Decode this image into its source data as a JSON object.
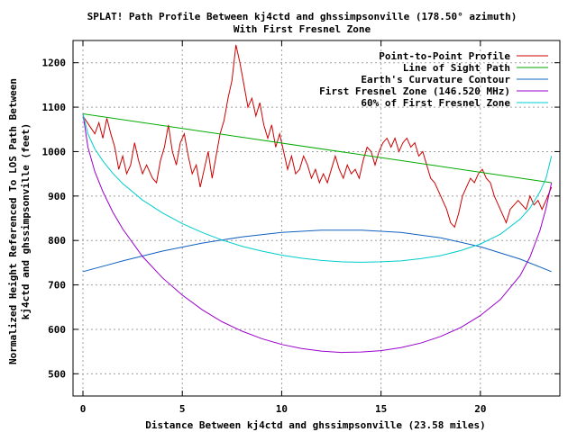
{
  "chart_data": {
    "type": "line",
    "title_line1": "SPLAT! Path Profile Between kj4ctd and ghssimpsonville (178.50° azimuth)",
    "title_line2": "With First Fresnel Zone",
    "xlabel": "Distance Between kj4ctd and ghssimpsonville (23.58 miles)",
    "ylabel_line1": "Normalized Height Referenced To LOS Path Between",
    "ylabel_line2": "kj4ctd and ghssimpsonville (feet)",
    "xlim": [
      -0.5,
      24
    ],
    "ylim": [
      450,
      1250
    ],
    "xticks": [
      0,
      5,
      10,
      15,
      20
    ],
    "yticks": [
      500,
      600,
      700,
      800,
      900,
      1000,
      1100,
      1200
    ],
    "grid": true,
    "legend_position": "top-right",
    "series": [
      {
        "name": "Point-to-Point Profile",
        "color": "#cc0000",
        "points": [
          [
            0,
            1080
          ],
          [
            0.3,
            1060
          ],
          [
            0.6,
            1040
          ],
          [
            0.8,
            1065
          ],
          [
            1.0,
            1030
          ],
          [
            1.2,
            1075
          ],
          [
            1.4,
            1040
          ],
          [
            1.6,
            1010
          ],
          [
            1.8,
            960
          ],
          [
            2.0,
            990
          ],
          [
            2.2,
            950
          ],
          [
            2.4,
            970
          ],
          [
            2.6,
            1020
          ],
          [
            2.8,
            980
          ],
          [
            3.0,
            950
          ],
          [
            3.2,
            970
          ],
          [
            3.5,
            940
          ],
          [
            3.7,
            930
          ],
          [
            3.9,
            980
          ],
          [
            4.1,
            1010
          ],
          [
            4.3,
            1060
          ],
          [
            4.5,
            1000
          ],
          [
            4.7,
            970
          ],
          [
            4.9,
            1020
          ],
          [
            5.1,
            1040
          ],
          [
            5.3,
            990
          ],
          [
            5.5,
            950
          ],
          [
            5.7,
            970
          ],
          [
            5.9,
            920
          ],
          [
            6.1,
            960
          ],
          [
            6.3,
            1000
          ],
          [
            6.5,
            940
          ],
          [
            6.7,
            990
          ],
          [
            6.9,
            1040
          ],
          [
            7.1,
            1070
          ],
          [
            7.3,
            1120
          ],
          [
            7.5,
            1160
          ],
          [
            7.7,
            1240
          ],
          [
            7.9,
            1200
          ],
          [
            8.1,
            1150
          ],
          [
            8.3,
            1100
          ],
          [
            8.5,
            1120
          ],
          [
            8.7,
            1080
          ],
          [
            8.9,
            1110
          ],
          [
            9.1,
            1060
          ],
          [
            9.3,
            1030
          ],
          [
            9.5,
            1060
          ],
          [
            9.7,
            1010
          ],
          [
            9.9,
            1040
          ],
          [
            10.1,
            1000
          ],
          [
            10.3,
            960
          ],
          [
            10.5,
            990
          ],
          [
            10.7,
            950
          ],
          [
            10.9,
            960
          ],
          [
            11.1,
            990
          ],
          [
            11.3,
            970
          ],
          [
            11.5,
            940
          ],
          [
            11.7,
            960
          ],
          [
            11.9,
            930
          ],
          [
            12.1,
            950
          ],
          [
            12.3,
            930
          ],
          [
            12.5,
            960
          ],
          [
            12.7,
            990
          ],
          [
            12.9,
            960
          ],
          [
            13.1,
            940
          ],
          [
            13.3,
            970
          ],
          [
            13.5,
            950
          ],
          [
            13.7,
            960
          ],
          [
            13.9,
            940
          ],
          [
            14.1,
            980
          ],
          [
            14.3,
            1010
          ],
          [
            14.5,
            1000
          ],
          [
            14.7,
            970
          ],
          [
            14.9,
            1000
          ],
          [
            15.1,
            1020
          ],
          [
            15.3,
            1030
          ],
          [
            15.5,
            1010
          ],
          [
            15.7,
            1030
          ],
          [
            15.9,
            1000
          ],
          [
            16.1,
            1020
          ],
          [
            16.3,
            1030
          ],
          [
            16.5,
            1010
          ],
          [
            16.7,
            1020
          ],
          [
            16.9,
            990
          ],
          [
            17.1,
            1000
          ],
          [
            17.3,
            970
          ],
          [
            17.5,
            940
          ],
          [
            17.7,
            930
          ],
          [
            17.9,
            910
          ],
          [
            18.1,
            890
          ],
          [
            18.3,
            870
          ],
          [
            18.5,
            840
          ],
          [
            18.7,
            830
          ],
          [
            18.9,
            860
          ],
          [
            19.1,
            900
          ],
          [
            19.3,
            920
          ],
          [
            19.5,
            940
          ],
          [
            19.7,
            930
          ],
          [
            19.9,
            950
          ],
          [
            20.1,
            960
          ],
          [
            20.3,
            940
          ],
          [
            20.5,
            930
          ],
          [
            20.7,
            900
          ],
          [
            20.9,
            880
          ],
          [
            21.1,
            860
          ],
          [
            21.3,
            840
          ],
          [
            21.5,
            870
          ],
          [
            21.7,
            880
          ],
          [
            21.9,
            890
          ],
          [
            22.1,
            880
          ],
          [
            22.3,
            870
          ],
          [
            22.5,
            900
          ],
          [
            22.7,
            880
          ],
          [
            22.9,
            890
          ],
          [
            23.1,
            870
          ],
          [
            23.3,
            890
          ],
          [
            23.58,
            920
          ]
        ]
      },
      {
        "name": "Line of Sight Path",
        "color": "#00aa00",
        "points": [
          [
            0,
            1085
          ],
          [
            23.58,
            930
          ]
        ]
      },
      {
        "name": "Earth's Curvature Contour",
        "color": "#1060c0",
        "points": [
          [
            0,
            730
          ],
          [
            2,
            754
          ],
          [
            4,
            776
          ],
          [
            6,
            794
          ],
          [
            8,
            808
          ],
          [
            10,
            818
          ],
          [
            12,
            823
          ],
          [
            14,
            823
          ],
          [
            16,
            818
          ],
          [
            18,
            806
          ],
          [
            20,
            786
          ],
          [
            22,
            758
          ],
          [
            23.58,
            730
          ]
        ]
      },
      {
        "name": "First Fresnel Zone (146.520 MHz)",
        "color": "#9900cc",
        "points": [
          [
            0,
            1085
          ],
          [
            0.25,
            1010
          ],
          [
            0.6,
            955
          ],
          [
            1,
            910
          ],
          [
            1.5,
            864
          ],
          [
            2,
            826
          ],
          [
            3,
            764
          ],
          [
            4,
            716
          ],
          [
            5,
            677
          ],
          [
            6,
            644
          ],
          [
            7,
            617
          ],
          [
            8,
            596
          ],
          [
            9,
            579
          ],
          [
            10,
            566
          ],
          [
            11,
            557
          ],
          [
            12,
            551
          ],
          [
            13,
            548
          ],
          [
            14,
            549
          ],
          [
            15,
            552
          ],
          [
            16,
            559
          ],
          [
            17,
            569
          ],
          [
            18,
            584
          ],
          [
            19,
            604
          ],
          [
            20,
            631
          ],
          [
            21,
            667
          ],
          [
            22,
            721
          ],
          [
            22.5,
            763
          ],
          [
            23,
            823
          ],
          [
            23.3,
            872
          ],
          [
            23.58,
            930
          ]
        ]
      },
      {
        "name": "60% of First Fresnel Zone",
        "color": "#00cccc",
        "points": [
          [
            0,
            1085
          ],
          [
            0.25,
            1040
          ],
          [
            0.6,
            1006
          ],
          [
            1,
            979
          ],
          [
            1.5,
            951
          ],
          [
            2,
            928
          ],
          [
            3,
            891
          ],
          [
            4,
            862
          ],
          [
            5,
            838
          ],
          [
            6,
            818
          ],
          [
            7,
            801
          ],
          [
            8,
            787
          ],
          [
            9,
            776
          ],
          [
            10,
            767
          ],
          [
            11,
            760
          ],
          [
            12,
            755
          ],
          [
            13,
            752
          ],
          [
            14,
            751
          ],
          [
            15,
            752
          ],
          [
            16,
            754
          ],
          [
            17,
            759
          ],
          [
            18,
            766
          ],
          [
            19,
            777
          ],
          [
            20,
            792
          ],
          [
            21,
            814
          ],
          [
            22,
            848
          ],
          [
            22.5,
            873
          ],
          [
            23,
            910
          ],
          [
            23.3,
            940
          ],
          [
            23.58,
            990
          ]
        ]
      }
    ]
  }
}
